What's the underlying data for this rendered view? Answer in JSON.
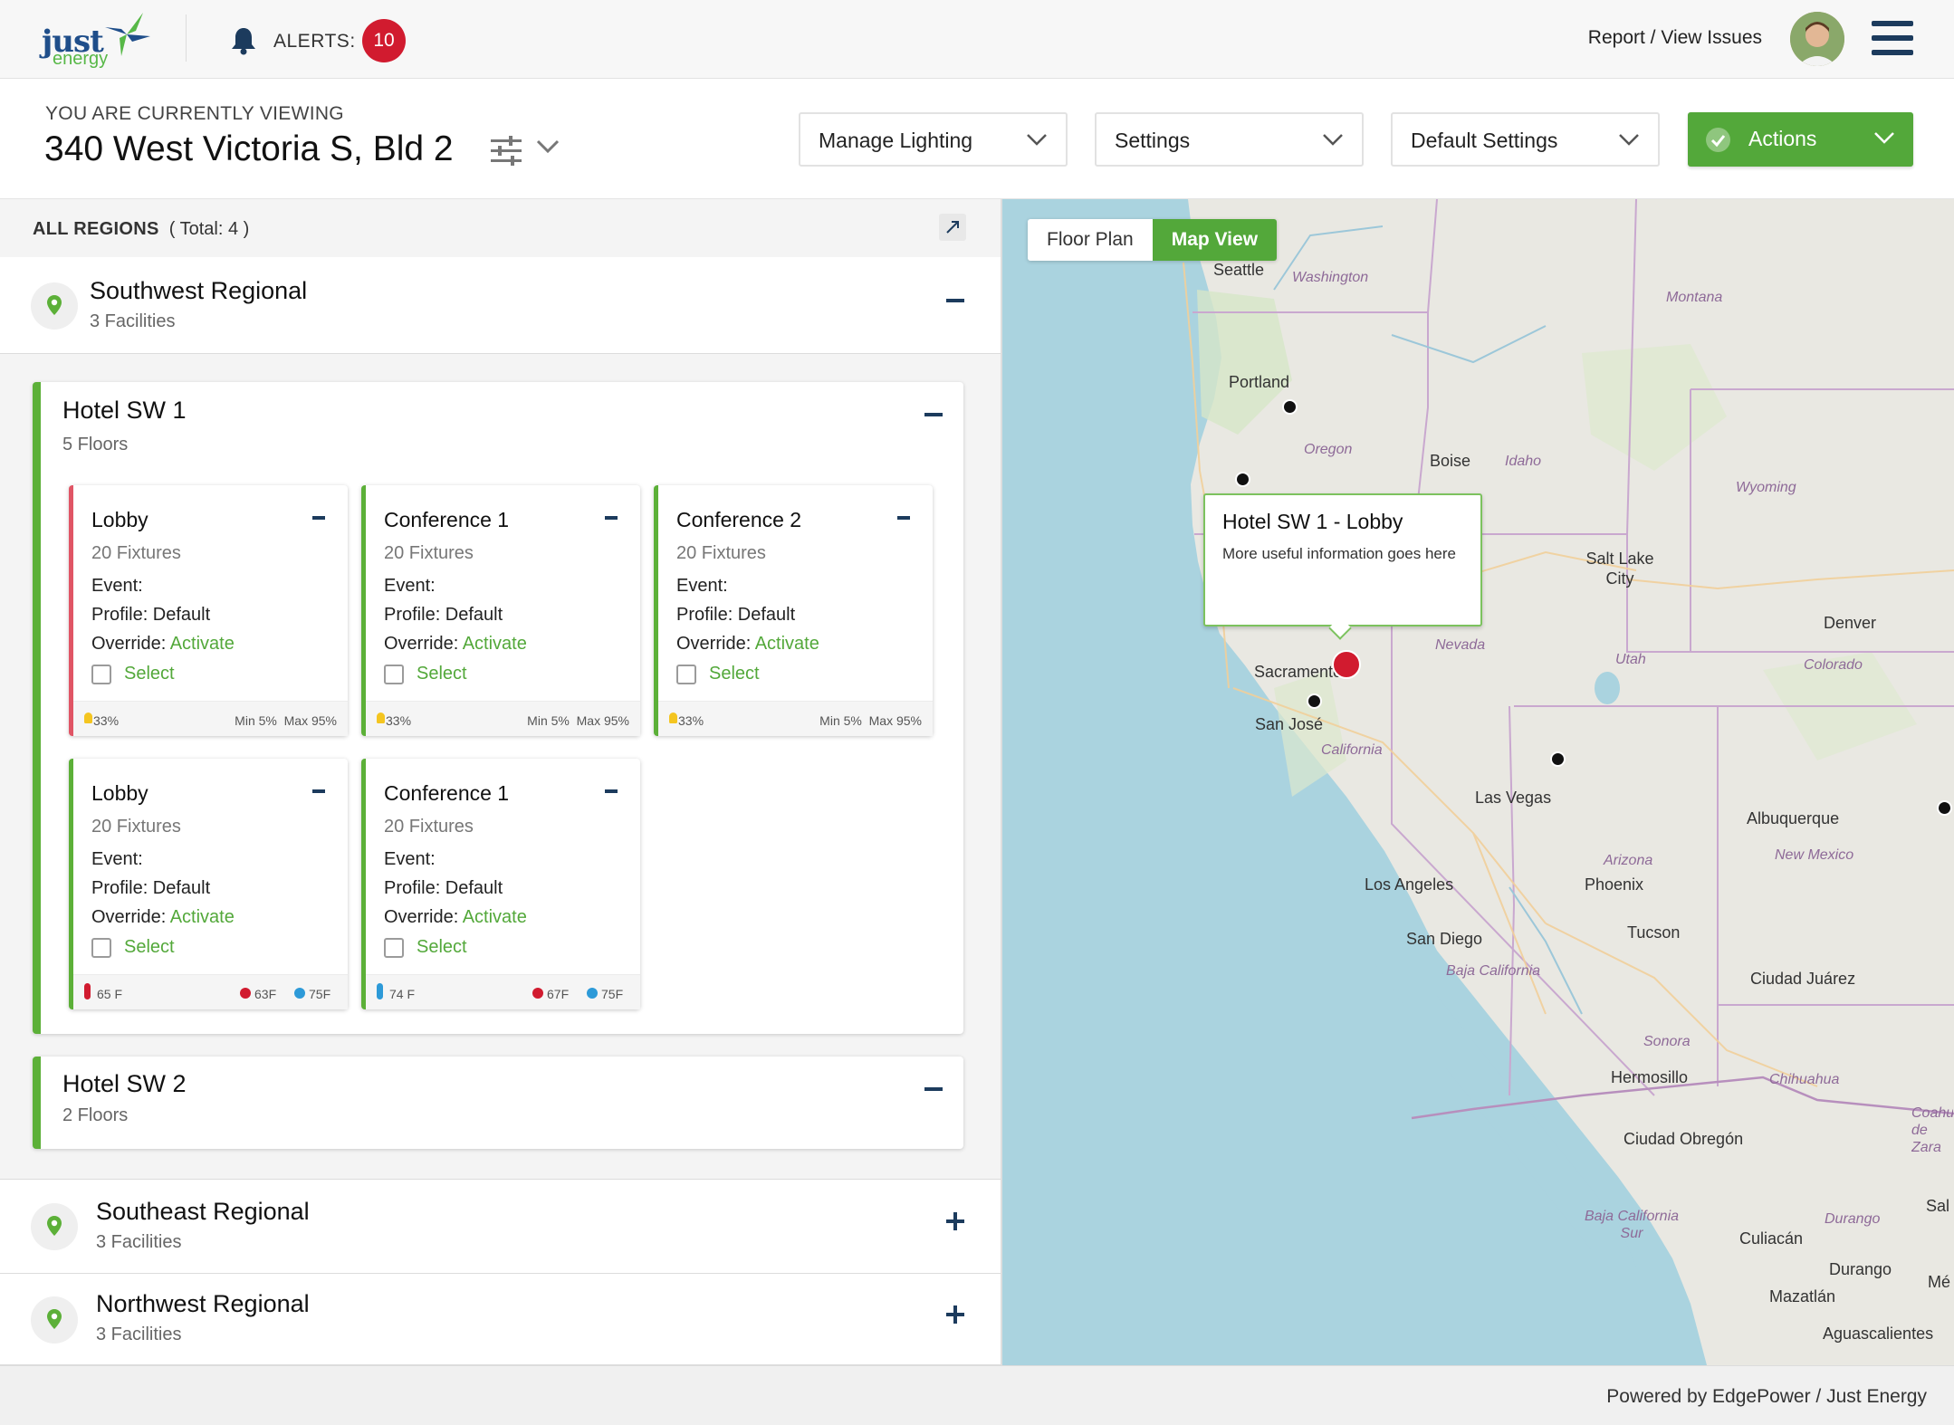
{
  "header": {
    "logo_word1": "just",
    "logo_word2": "energy",
    "alerts_label": "ALERTS:",
    "alerts_count": "10",
    "report_link": "Report / View Issues",
    "icons": [
      "bell-icon",
      "avatar",
      "hamburger-menu-icon"
    ]
  },
  "viewing": {
    "label": "YOU ARE CURRENTLY VIEWING",
    "building": "340 West Victoria S, Bld 2"
  },
  "toolbar": {
    "manage_lighting": "Manage Lighting",
    "settings": "Settings",
    "default_settings": "Default Settings",
    "actions": "Actions"
  },
  "regions_header": {
    "title": "ALL REGIONS",
    "total": "( Total: 4 )"
  },
  "regions": [
    {
      "name": "Southwest Regional",
      "facilities": "3 Facilities",
      "expanded": true,
      "hotels": [
        {
          "name": "Hotel SW 1",
          "floors": "5 Floors",
          "rooms": [
            {
              "name": "Lobby",
              "fixtures": "20 Fixtures",
              "event": "Event:",
              "profile": "Profile: Default",
              "override_label": "Override:",
              "override_action": "Activate",
              "select": "Select",
              "footer": {
                "type": "lighting",
                "level": "33%",
                "min": "Min 5%",
                "max": "Max 95%"
              },
              "status": "alert"
            },
            {
              "name": "Conference 1",
              "fixtures": "20 Fixtures",
              "event": "Event:",
              "profile": "Profile: Default",
              "override_label": "Override:",
              "override_action": "Activate",
              "select": "Select",
              "footer": {
                "type": "lighting",
                "level": "33%",
                "min": "Min 5%",
                "max": "Max 95%"
              },
              "status": "ok"
            },
            {
              "name": "Conference 2",
              "fixtures": "20 Fixtures",
              "event": "Event:",
              "profile": "Profile: Default",
              "override_label": "Override:",
              "override_action": "Activate",
              "select": "Select",
              "footer": {
                "type": "lighting",
                "level": "33%",
                "min": "Min 5%",
                "max": "Max 95%"
              },
              "status": "ok"
            },
            {
              "name": "Lobby",
              "fixtures": "20 Fixtures",
              "event": "Event:",
              "profile": "Profile: Default",
              "override_label": "Override:",
              "override_action": "Activate",
              "select": "Select",
              "footer": {
                "type": "temperature",
                "temp": "65 F",
                "heat": "63F",
                "cool": "75F"
              },
              "status": "ok"
            },
            {
              "name": "Conference 1",
              "fixtures": "20 Fixtures",
              "event": "Event:",
              "profile": "Profile: Default",
              "override_label": "Override:",
              "override_action": "Activate",
              "select": "Select",
              "footer": {
                "type": "temperature",
                "temp": "74 F",
                "heat": "67F",
                "cool": "75F"
              },
              "status": "ok"
            }
          ]
        },
        {
          "name": "Hotel SW 2",
          "floors": "2 Floors"
        }
      ]
    },
    {
      "name": "Southeast Regional",
      "facilities": "3 Facilities",
      "expanded": false
    },
    {
      "name": "Northwest Regional",
      "facilities": "3 Facilities",
      "expanded": false
    }
  ],
  "map": {
    "tabs": [
      "Floor Plan",
      "Map View"
    ],
    "active_tab": "Map View",
    "popup_title": "Hotel SW 1 - Lobby",
    "popup_body": "More useful information goes here",
    "cities": [
      "Seattle",
      "Portland",
      "Boise",
      "Salt Lake City",
      "Sacramento",
      "San José",
      "Las Vegas",
      "Denver",
      "Albuquerque",
      "Los Angeles",
      "San Diego",
      "Phoenix",
      "Tucson",
      "Ciudad Juárez",
      "Hermosillo",
      "Ciudad Obregón",
      "Culiacán",
      "Durango",
      "Mazatlán",
      "Aguascalientes",
      "Sal",
      "Mé",
      "Coahu de Zara"
    ],
    "states": [
      "Washington",
      "Montana",
      "Oregon",
      "Idaho",
      "Wyoming",
      "Nevada",
      "Utah",
      "Colorado",
      "California",
      "Arizona",
      "New Mexico",
      "Baja California",
      "Sonora",
      "Chihuahua",
      "Baja California Sur",
      "Durango"
    ]
  },
  "footer": {
    "text": "Powered by EdgePower / Just Energy"
  },
  "colors": {
    "brand_green": "#53a83a",
    "alert_red": "#d11b2f",
    "navy": "#1c3b5d",
    "water": "#aad3df",
    "land": "#e9e8e2"
  }
}
